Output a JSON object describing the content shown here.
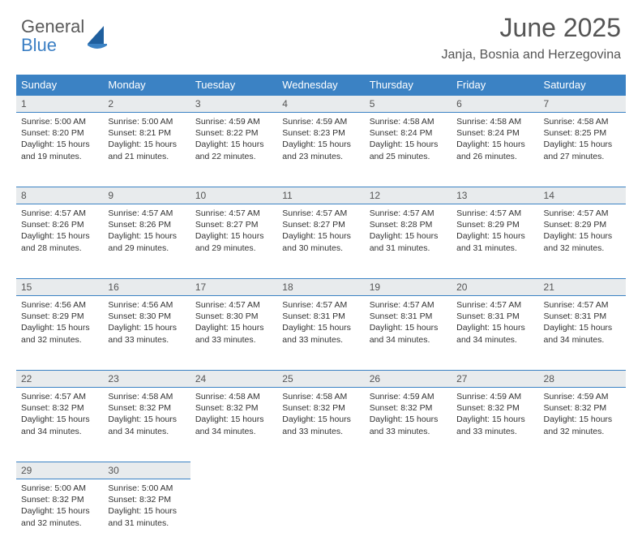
{
  "logo": {
    "word1": "General",
    "word2": "Blue"
  },
  "title": "June 2025",
  "location": "Janja, Bosnia and Herzegovina",
  "colors": {
    "header_bg": "#3b82c4",
    "header_text": "#ffffff",
    "daynum_bg": "#e8ebed",
    "body_bg": "#ffffff",
    "text": "#333333",
    "logo_gray": "#5a5a5a",
    "logo_blue": "#3b7fc4"
  },
  "day_headers": [
    "Sunday",
    "Monday",
    "Tuesday",
    "Wednesday",
    "Thursday",
    "Friday",
    "Saturday"
  ],
  "weeks": [
    [
      {
        "n": "1",
        "sunrise": "5:00 AM",
        "sunset": "8:20 PM",
        "daylight": "15 hours and 19 minutes."
      },
      {
        "n": "2",
        "sunrise": "5:00 AM",
        "sunset": "8:21 PM",
        "daylight": "15 hours and 21 minutes."
      },
      {
        "n": "3",
        "sunrise": "4:59 AM",
        "sunset": "8:22 PM",
        "daylight": "15 hours and 22 minutes."
      },
      {
        "n": "4",
        "sunrise": "4:59 AM",
        "sunset": "8:23 PM",
        "daylight": "15 hours and 23 minutes."
      },
      {
        "n": "5",
        "sunrise": "4:58 AM",
        "sunset": "8:24 PM",
        "daylight": "15 hours and 25 minutes."
      },
      {
        "n": "6",
        "sunrise": "4:58 AM",
        "sunset": "8:24 PM",
        "daylight": "15 hours and 26 minutes."
      },
      {
        "n": "7",
        "sunrise": "4:58 AM",
        "sunset": "8:25 PM",
        "daylight": "15 hours and 27 minutes."
      }
    ],
    [
      {
        "n": "8",
        "sunrise": "4:57 AM",
        "sunset": "8:26 PM",
        "daylight": "15 hours and 28 minutes."
      },
      {
        "n": "9",
        "sunrise": "4:57 AM",
        "sunset": "8:26 PM",
        "daylight": "15 hours and 29 minutes."
      },
      {
        "n": "10",
        "sunrise": "4:57 AM",
        "sunset": "8:27 PM",
        "daylight": "15 hours and 29 minutes."
      },
      {
        "n": "11",
        "sunrise": "4:57 AM",
        "sunset": "8:27 PM",
        "daylight": "15 hours and 30 minutes."
      },
      {
        "n": "12",
        "sunrise": "4:57 AM",
        "sunset": "8:28 PM",
        "daylight": "15 hours and 31 minutes."
      },
      {
        "n": "13",
        "sunrise": "4:57 AM",
        "sunset": "8:29 PM",
        "daylight": "15 hours and 31 minutes."
      },
      {
        "n": "14",
        "sunrise": "4:57 AM",
        "sunset": "8:29 PM",
        "daylight": "15 hours and 32 minutes."
      }
    ],
    [
      {
        "n": "15",
        "sunrise": "4:56 AM",
        "sunset": "8:29 PM",
        "daylight": "15 hours and 32 minutes."
      },
      {
        "n": "16",
        "sunrise": "4:56 AM",
        "sunset": "8:30 PM",
        "daylight": "15 hours and 33 minutes."
      },
      {
        "n": "17",
        "sunrise": "4:57 AM",
        "sunset": "8:30 PM",
        "daylight": "15 hours and 33 minutes."
      },
      {
        "n": "18",
        "sunrise": "4:57 AM",
        "sunset": "8:31 PM",
        "daylight": "15 hours and 33 minutes."
      },
      {
        "n": "19",
        "sunrise": "4:57 AM",
        "sunset": "8:31 PM",
        "daylight": "15 hours and 34 minutes."
      },
      {
        "n": "20",
        "sunrise": "4:57 AM",
        "sunset": "8:31 PM",
        "daylight": "15 hours and 34 minutes."
      },
      {
        "n": "21",
        "sunrise": "4:57 AM",
        "sunset": "8:31 PM",
        "daylight": "15 hours and 34 minutes."
      }
    ],
    [
      {
        "n": "22",
        "sunrise": "4:57 AM",
        "sunset": "8:32 PM",
        "daylight": "15 hours and 34 minutes."
      },
      {
        "n": "23",
        "sunrise": "4:58 AM",
        "sunset": "8:32 PM",
        "daylight": "15 hours and 34 minutes."
      },
      {
        "n": "24",
        "sunrise": "4:58 AM",
        "sunset": "8:32 PM",
        "daylight": "15 hours and 34 minutes."
      },
      {
        "n": "25",
        "sunrise": "4:58 AM",
        "sunset": "8:32 PM",
        "daylight": "15 hours and 33 minutes."
      },
      {
        "n": "26",
        "sunrise": "4:59 AM",
        "sunset": "8:32 PM",
        "daylight": "15 hours and 33 minutes."
      },
      {
        "n": "27",
        "sunrise": "4:59 AM",
        "sunset": "8:32 PM",
        "daylight": "15 hours and 33 minutes."
      },
      {
        "n": "28",
        "sunrise": "4:59 AM",
        "sunset": "8:32 PM",
        "daylight": "15 hours and 32 minutes."
      }
    ],
    [
      {
        "n": "29",
        "sunrise": "5:00 AM",
        "sunset": "8:32 PM",
        "daylight": "15 hours and 32 minutes."
      },
      {
        "n": "30",
        "sunrise": "5:00 AM",
        "sunset": "8:32 PM",
        "daylight": "15 hours and 31 minutes."
      },
      null,
      null,
      null,
      null,
      null
    ]
  ],
  "labels": {
    "sunrise": "Sunrise: ",
    "sunset": "Sunset: ",
    "daylight": "Daylight: "
  }
}
